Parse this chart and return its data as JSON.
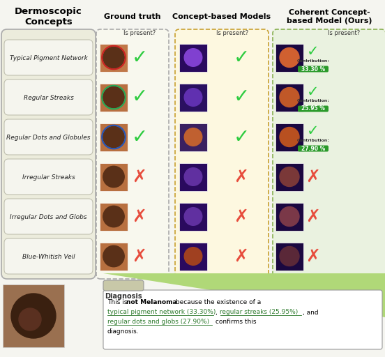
{
  "title_concepts": "Dermoscopic\nConcepts",
  "col_headers": [
    "Ground truth",
    "Concept-based Models",
    "Coherent Concept-\nbased Model (Ours)"
  ],
  "col_subheaders": [
    "Is present?",
    "Is present?",
    "Is present?"
  ],
  "concepts": [
    "Typical Pigment Network",
    "Regular Streaks",
    "Regular Dots and Globules",
    "Irregular Streaks",
    "Irregular Dots and Globs",
    "Blue-Whitish Veil"
  ],
  "gt_present": [
    true,
    true,
    true,
    false,
    false,
    false
  ],
  "cbm_present": [
    true,
    true,
    true,
    false,
    false,
    false
  ],
  "ours_present": [
    true,
    true,
    true,
    false,
    false,
    false
  ],
  "contributions": [
    "33.30 %",
    "25.95 %",
    "27.90 %"
  ],
  "bg_color": "#f5f5f0",
  "green_check": "#2ecc40",
  "red_cross": "#e74c3c",
  "diagnosis_label": "Diagnosis",
  "link_color": "#2d7a2d",
  "fig_width": 5.52,
  "fig_height": 5.12
}
